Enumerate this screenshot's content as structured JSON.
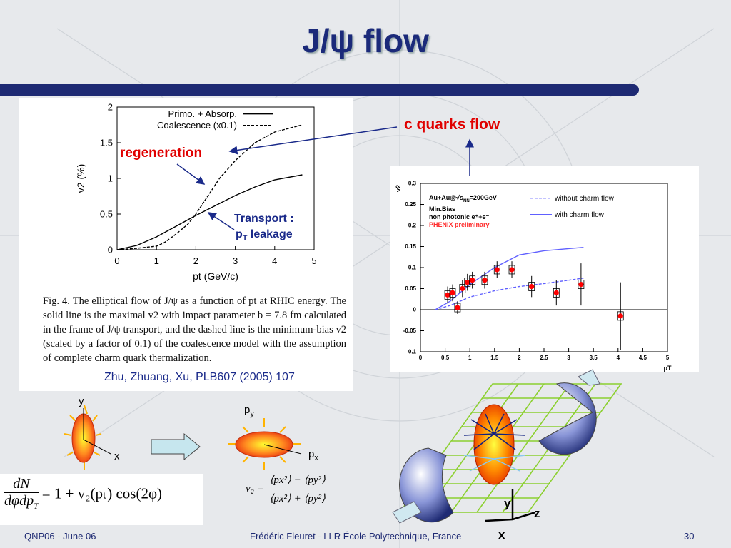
{
  "slide": {
    "title": "J/ψ flow",
    "footer_left": "QNP06 - June 06",
    "footer_center": "Frédéric Fleuret - LLR École Polytechnique, France",
    "page_number": "30"
  },
  "annotations": {
    "regeneration": "regeneration",
    "transport_line1": "Transport :",
    "transport_pt": "p",
    "transport_pt_sub": "T",
    "transport_line2": " leakage",
    "c_quarks_flow": "c quarks flow"
  },
  "caption": {
    "text": "Fig. 4. The elliptical flow of J/ψ as a function of pt at RHIC energy. The solid line is the maximal v2 with impact parameter b = 7.8 fm calculated in the frame of J/ψ transport, and the dashed line is the minimum-bias v2 (scaled by a factor of 0.1) of the coalescence model with the assumption of complete charm quark thermalization.",
    "citation": "Zhu, Zhuang, Xu, PLB607 (2005) 107"
  },
  "diagram_labels": {
    "y": "y",
    "x": "x",
    "py": "p",
    "py_sub": "y",
    "px": "p",
    "px_sub": "x",
    "axis_y": "y",
    "axis_z": "z",
    "axis_x": "x"
  },
  "equations": {
    "eq1_lhs_num": "dN",
    "eq1_lhs_den": "dφdp",
    "eq1_lhs_den_sub": "T",
    "eq1_rhs": "= 1 + v₂(pₜ) cos(2φ)",
    "eq2_lhs": "v₂ =",
    "eq2_num": "⟨px²⟩ − ⟨py²⟩",
    "eq2_den": "⟨px²⟩ + ⟨py²⟩"
  },
  "colors": {
    "title": "#1b2a7a",
    "accent_red": "#e00000",
    "bar": "#1e2a73",
    "phenix_marker": "#ff0000",
    "phenix_line": "#6060ff"
  },
  "chart_data": [
    {
      "type": "line",
      "xlabel": "pt (GeV/c)",
      "ylabel": "v2 (%)",
      "xlim": [
        0,
        5
      ],
      "ylim": [
        0,
        2
      ],
      "xticks": [
        "0",
        "1",
        "2",
        "3",
        "4",
        "5"
      ],
      "yticks": [
        "0",
        "0.5",
        "1",
        "1.5",
        "2"
      ],
      "legend_position": "top-right",
      "series": [
        {
          "name": "Primo. + Absorp.",
          "style": "solid",
          "x": [
            0,
            0.5,
            1,
            1.5,
            2,
            2.5,
            3,
            3.5,
            4,
            4.7
          ],
          "y": [
            0,
            0.06,
            0.18,
            0.33,
            0.48,
            0.62,
            0.76,
            0.88,
            0.98,
            1.05
          ]
        },
        {
          "name": "Coalescence (x0.1)",
          "style": "dashed",
          "x": [
            0,
            0.5,
            1,
            1.2,
            1.5,
            1.8,
            2,
            2.3,
            2.6,
            3,
            3.5,
            4,
            4.7
          ],
          "y": [
            0,
            0.02,
            0.05,
            0.1,
            0.22,
            0.36,
            0.5,
            0.75,
            1.0,
            1.25,
            1.5,
            1.65,
            1.75
          ]
        }
      ]
    },
    {
      "type": "scatter",
      "xlabel": "pT",
      "ylabel": "v2",
      "xlim": [
        0,
        5
      ],
      "ylim": [
        -0.1,
        0.3
      ],
      "xticks": [
        "0",
        "0.5",
        "1",
        "1.5",
        "2",
        "2.5",
        "3",
        "3.5",
        "4",
        "4.5",
        "5"
      ],
      "yticks": [
        "-0.1",
        "-0.05",
        "0",
        "0.05",
        "0.1",
        "0.15",
        "0.2",
        "0.25",
        "0.3"
      ],
      "info_text": [
        "Au+Au@√s",
        "Min.Bias",
        "non photonic e⁺+e⁻"
      ],
      "info_sqrt_sub": "NN",
      "info_energy": "=200GeV",
      "preliminary_label": "PHENIX preliminary",
      "series": [
        {
          "name": "without charm flow",
          "style": "dashed",
          "x": [
            0.3,
            0.6,
            1,
            1.5,
            2,
            2.5,
            3,
            3.3
          ],
          "y": [
            0,
            0.01,
            0.03,
            0.045,
            0.055,
            0.062,
            0.07,
            0.075
          ]
        },
        {
          "name": "with charm flow",
          "style": "solid",
          "x": [
            0.3,
            0.6,
            1,
            1.5,
            2,
            2.5,
            3,
            3.3
          ],
          "y": [
            0,
            0.02,
            0.06,
            0.1,
            0.13,
            0.14,
            0.145,
            0.148
          ]
        },
        {
          "name": "",
          "style": "points",
          "x": [
            0.55,
            0.65,
            0.75,
            0.85,
            0.95,
            1.05,
            1.3,
            1.55,
            1.85,
            2.25,
            2.75,
            3.25,
            4.05
          ],
          "y": [
            0.035,
            0.04,
            0.005,
            0.05,
            0.065,
            0.07,
            0.07,
            0.095,
            0.095,
            0.055,
            0.04,
            0.06,
            -0.015
          ],
          "err": [
            0.02,
            0.02,
            0.015,
            0.02,
            0.02,
            0.02,
            0.02,
            0.02,
            0.02,
            0.025,
            0.03,
            0.05,
            0.08
          ]
        }
      ]
    }
  ]
}
